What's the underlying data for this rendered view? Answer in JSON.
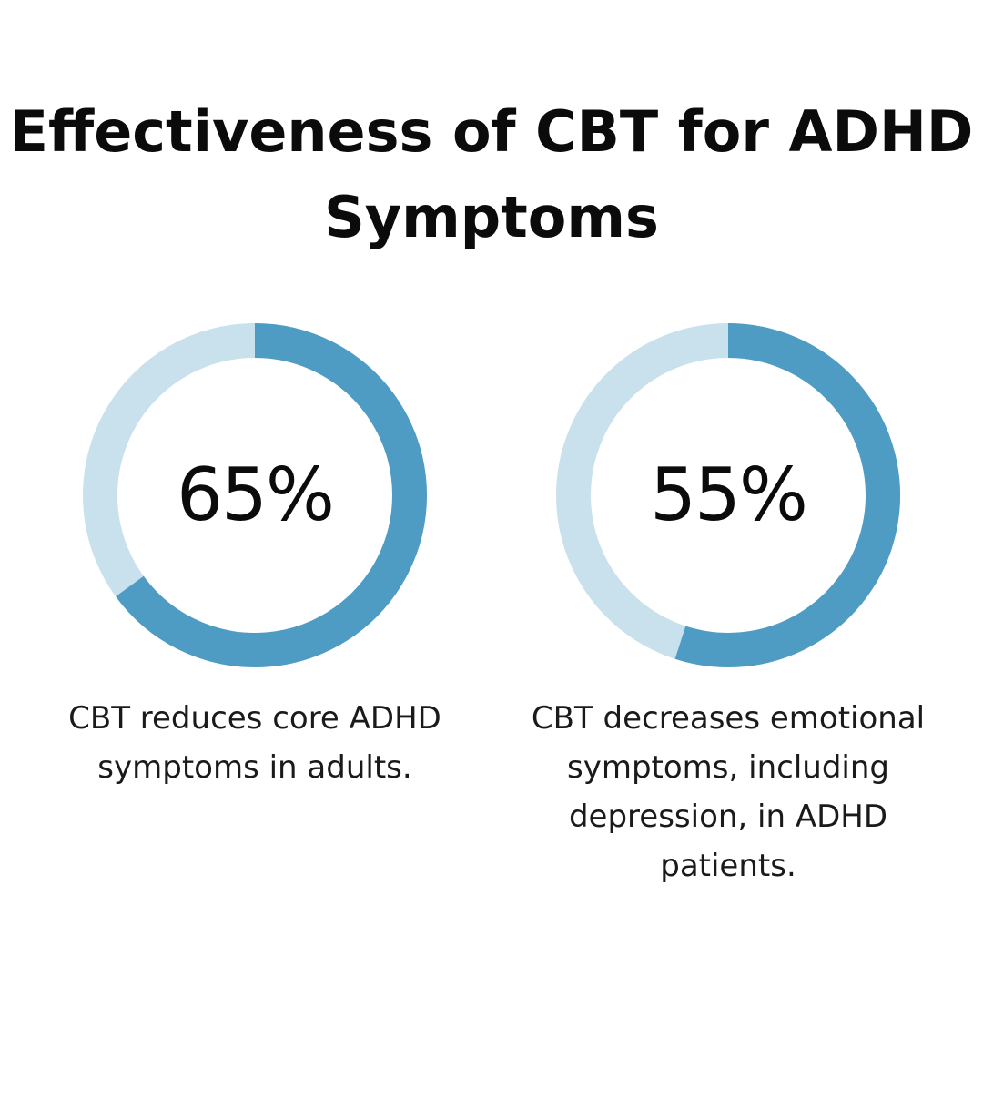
{
  "title": "Effectiveness of CBT for ADHD Symptoms",
  "colors": {
    "filled": "#4e9cc4",
    "track": "#c9e0ed",
    "text": "#0b0b0b"
  },
  "chart_data": [
    {
      "type": "pie",
      "value": 65,
      "max": 100,
      "label": "65%",
      "description": "CBT reduces core ADHD symptoms in adults."
    },
    {
      "type": "pie",
      "value": 55,
      "max": 100,
      "label": "55%",
      "description": "CBT decreases emotional symptoms, including depression, in ADHD patients."
    }
  ]
}
